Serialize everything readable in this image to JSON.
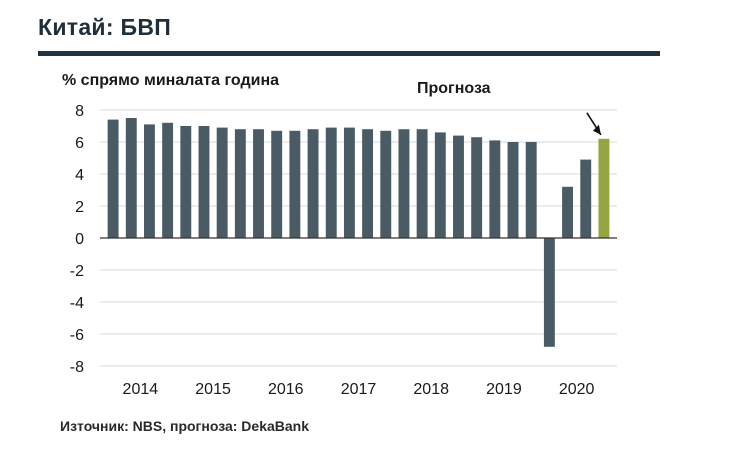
{
  "header": {
    "title": "Китай: БВП"
  },
  "footer": {
    "source": "Източник: NBS, прогноза: DekaBank"
  },
  "colors": {
    "bar": "#4a5b66",
    "forecast_bar": "#95a543",
    "grid": "#d9d9d9",
    "axis": "#333333",
    "title_rule": "#22323e"
  },
  "chart_data": {
    "type": "bar",
    "title": "Китай: БВП",
    "ylabel": "% спрямо миналата година",
    "xlabel": "",
    "ylim": [
      -8,
      8
    ],
    "yticks": [
      8,
      6,
      4,
      2,
      0,
      -2,
      -4,
      -6,
      -8
    ],
    "year_ticks": [
      "2014",
      "2015",
      "2016",
      "2017",
      "2018",
      "2019",
      "2020"
    ],
    "forecast_annotation": "Прогноза",
    "categories": [
      "2014 Q1",
      "2014 Q2",
      "2014 Q3",
      "2014 Q4",
      "2015 Q1",
      "2015 Q2",
      "2015 Q3",
      "2015 Q4",
      "2016 Q1",
      "2016 Q2",
      "2016 Q3",
      "2016 Q4",
      "2017 Q1",
      "2017 Q2",
      "2017 Q3",
      "2017 Q4",
      "2018 Q1",
      "2018 Q2",
      "2018 Q3",
      "2018 Q4",
      "2019 Q1",
      "2019 Q2",
      "2019 Q3",
      "2019 Q4",
      "2020 Q1",
      "2020 Q2",
      "2020 Q3",
      "2020 Q4"
    ],
    "values": [
      7.4,
      7.5,
      7.1,
      7.2,
      7.0,
      7.0,
      6.9,
      6.8,
      6.8,
      6.7,
      6.7,
      6.8,
      6.9,
      6.9,
      6.8,
      6.7,
      6.8,
      6.8,
      6.6,
      6.4,
      6.3,
      6.1,
      6.0,
      6.0,
      -6.8,
      3.2,
      4.9,
      6.2
    ],
    "forecast_index": 27
  }
}
